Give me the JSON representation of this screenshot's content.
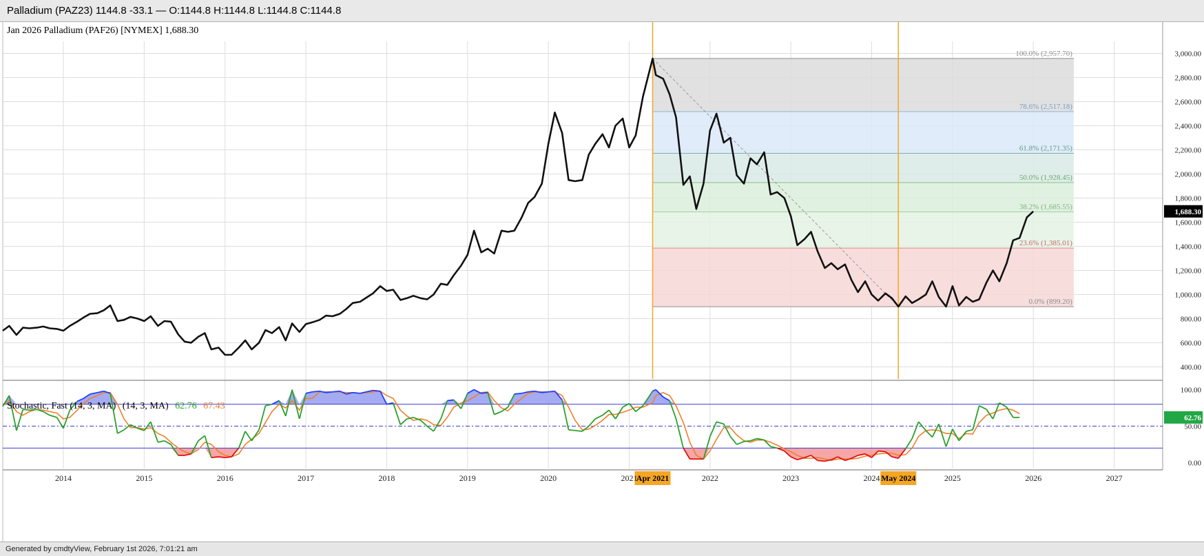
{
  "window_title": "Palladium (PAZ23) 1144.8 -33.1 — O:1144.8 H:1144.8 L:1144.8 C:1144.8",
  "footer_text": "Generated by cmdtyView, February 1st 2026, 7:01:21 am",
  "colors": {
    "price_line": "#111111",
    "marker": "#f5a623",
    "fast_k": "#2ca02c",
    "slow_d": "#f07f2a",
    "over_fill": "#9aa2f0",
    "under_fill": "#f29090",
    "over_line": "#1f3fff",
    "under_line": "#e01010",
    "last_price_bg": "#000000",
    "last_stoch_bg": "#22a745"
  },
  "chart_data": [
    {
      "type": "line",
      "title": "Jan 2026 Palladium (PAF26) [NYMEX] 1,688.30",
      "last_value_label": "1,688.30",
      "ylim": [
        300,
        3100
      ],
      "xlim": [
        2013.25,
        2027.6
      ],
      "y_ticks": [
        "400.00",
        "600.00",
        "800.00",
        "1,000.00",
        "1,200.00",
        "1,400.00",
        "1,600.00",
        "1,800.00",
        "2,000.00",
        "2,200.00",
        "2,400.00",
        "2,600.00",
        "2,800.00",
        "3,000.00"
      ],
      "x_ticks": [
        "2014",
        "2015",
        "2016",
        "2017",
        "2018",
        "2019",
        "2020",
        "2021",
        "2022",
        "2023",
        "2024",
        "2025",
        "2026",
        "2027"
      ],
      "fibonacci": {
        "levels": [
          {
            "label": "100.0% (2,957.70)",
            "value": 2957.7,
            "fill": "#dcdcdc",
            "line": "#8c8c8c",
            "text": "#8c8c8c"
          },
          {
            "label": "78.6% (2,517.18)",
            "value": 2517.18,
            "fill": "#dbe9f8",
            "line": "#8fb2d8",
            "text": "#7a9cc8"
          },
          {
            "label": "61.8% (2,171.35)",
            "value": 2171.35,
            "fill": "#d9eae6",
            "line": "#7fb0a6",
            "text": "#5e9a8e"
          },
          {
            "label": "50.0% (1,928.45)",
            "value": 1928.45,
            "fill": "#dcefdc",
            "line": "#86c086",
            "text": "#6aa86a"
          },
          {
            "label": "38.2% (1,685.55)",
            "value": 1685.55,
            "fill": "#e4f2e4",
            "line": "#a0d0a0",
            "text": "#7fb07f"
          },
          {
            "label": "23.6% (1,385.01)",
            "value": 1385.01,
            "fill": "#f7d7d7",
            "line": "#e08a8a",
            "text": "#c46a6a"
          },
          {
            "label": "0.0% (899.20)",
            "value": 899.2,
            "fill": "none",
            "line": "#8c8c8c",
            "text": "#8c8c8c"
          }
        ],
        "start_x": 2021.29,
        "end_x": 2024.33,
        "right_x": 2026.5
      },
      "markers": [
        {
          "label": "Apr 2021",
          "x": 2021.29
        },
        {
          "label": "May 2024",
          "x": 2024.33
        }
      ],
      "series": [
        {
          "x": [
            2013.25,
            2013.33,
            2013.42,
            2013.5,
            2013.58,
            2013.67,
            2013.75,
            2013.83,
            2013.92,
            2014.0,
            2014.08,
            2014.17,
            2014.25,
            2014.33,
            2014.42,
            2014.5,
            2014.58,
            2014.67,
            2014.75,
            2014.83,
            2014.92,
            2015.0,
            2015.08,
            2015.17,
            2015.25,
            2015.33,
            2015.42,
            2015.5,
            2015.58,
            2015.67,
            2015.75,
            2015.83,
            2015.92,
            2016.0,
            2016.08,
            2016.17,
            2016.25,
            2016.33,
            2016.42,
            2016.5,
            2016.58,
            2016.67,
            2016.75,
            2016.83,
            2016.92,
            2017.0,
            2017.08,
            2017.17,
            2017.25,
            2017.33,
            2017.42,
            2017.5,
            2017.58,
            2017.67,
            2017.75,
            2017.83,
            2017.92,
            2018.0,
            2018.08,
            2018.17,
            2018.25,
            2018.33,
            2018.42,
            2018.5,
            2018.58,
            2018.67,
            2018.75,
            2018.83,
            2018.92,
            2019.0,
            2019.08,
            2019.17,
            2019.25,
            2019.33,
            2019.42,
            2019.5,
            2019.58,
            2019.67,
            2019.75,
            2019.83,
            2019.92,
            2020.0,
            2020.08,
            2020.17,
            2020.25,
            2020.33,
            2020.42,
            2020.5,
            2020.58,
            2020.67,
            2020.75,
            2020.83,
            2020.92,
            2021.0,
            2021.08,
            2021.17,
            2021.29,
            2021.33,
            2021.42,
            2021.5,
            2021.58,
            2021.67,
            2021.75,
            2021.83,
            2021.92,
            2022.0,
            2022.08,
            2022.17,
            2022.25,
            2022.33,
            2022.42,
            2022.5,
            2022.58,
            2022.67,
            2022.75,
            2022.83,
            2022.92,
            2023.0,
            2023.08,
            2023.17,
            2023.25,
            2023.33,
            2023.42,
            2023.5,
            2023.58,
            2023.67,
            2023.75,
            2023.83,
            2023.92,
            2024.0,
            2024.08,
            2024.17,
            2024.25,
            2024.33,
            2024.42,
            2024.5,
            2024.58,
            2024.67,
            2024.75,
            2024.83,
            2024.92,
            2025.0,
            2025.08,
            2025.17,
            2025.25,
            2025.33,
            2025.42,
            2025.5,
            2025.58,
            2025.67,
            2025.75,
            2025.83,
            2025.92,
            2026.0
          ],
          "values": [
            700,
            740,
            665,
            725,
            720,
            725,
            735,
            720,
            715,
            700,
            740,
            775,
            810,
            840,
            845,
            870,
            910,
            780,
            790,
            815,
            800,
            780,
            820,
            740,
            780,
            775,
            670,
            610,
            600,
            650,
            680,
            545,
            560,
            500,
            500,
            560,
            620,
            545,
            600,
            705,
            680,
            730,
            620,
            760,
            690,
            755,
            770,
            790,
            825,
            820,
            840,
            880,
            930,
            940,
            975,
            1010,
            1070,
            1030,
            1040,
            955,
            970,
            990,
            970,
            960,
            1000,
            1090,
            1080,
            1160,
            1240,
            1330,
            1530,
            1350,
            1380,
            1340,
            1530,
            1520,
            1530,
            1640,
            1760,
            1810,
            1920,
            2250,
            2510,
            2340,
            1950,
            1940,
            1950,
            2160,
            2250,
            2330,
            2220,
            2400,
            2460,
            2220,
            2320,
            2640,
            2957,
            2820,
            2790,
            2660,
            2470,
            1910,
            1980,
            1710,
            1920,
            2360,
            2500,
            2260,
            2300,
            1990,
            1920,
            2130,
            2080,
            2180,
            1830,
            1850,
            1800,
            1650,
            1410,
            1460,
            1520,
            1360,
            1220,
            1260,
            1210,
            1250,
            1120,
            1020,
            1110,
            1000,
            950,
            1010,
            970,
            900,
            985,
            930,
            960,
            1000,
            1110,
            980,
            900,
            1070,
            910,
            980,
            940,
            960,
            1100,
            1200,
            1110,
            1260,
            1450,
            1470,
            1640,
            1690
          ]
        }
      ]
    },
    {
      "type": "line",
      "title": "Stochastic, Fast (14, 3, MA)",
      "params": "(14, 3, MA)",
      "k_value_label": "62.76",
      "d_value_label": "67.43",
      "ylim": [
        -8,
        110
      ],
      "y_ticks": [
        "0.00",
        "50.00",
        "100.00"
      ],
      "levels": [
        80,
        50,
        20
      ],
      "series": [
        {
          "name": "62.76",
          "values": [
            77,
            92,
            44,
            73,
            72,
            73,
            70,
            65,
            62,
            47,
            72,
            84,
            88,
            94,
            96,
            98,
            95,
            40,
            45,
            52,
            47,
            44,
            56,
            28,
            30,
            25,
            10,
            10,
            12,
            30,
            37,
            7,
            8,
            7,
            8,
            20,
            43,
            30,
            45,
            78,
            80,
            85,
            64,
            100,
            60,
            95,
            97,
            98,
            96,
            97,
            98,
            94,
            96,
            95,
            97,
            99,
            98,
            80,
            82,
            52,
            60,
            62,
            58,
            50,
            43,
            60,
            85,
            86,
            74,
            95,
            100,
            95,
            96,
            66,
            70,
            76,
            94,
            95,
            97,
            98,
            96,
            97,
            98,
            86,
            45,
            44,
            43,
            50,
            60,
            65,
            72,
            60,
            76,
            81,
            70,
            78,
            98,
            100,
            90,
            85,
            60,
            20,
            5,
            5,
            5,
            36,
            56,
            53,
            36,
            25,
            29,
            30,
            33,
            31,
            22,
            20,
            16,
            8,
            4,
            7,
            10,
            3,
            2,
            4,
            8,
            3,
            6,
            10,
            12,
            7,
            16,
            15,
            8,
            6,
            19,
            33,
            56,
            44,
            35,
            53,
            22,
            46,
            30,
            43,
            45,
            78,
            73,
            60,
            82,
            76,
            62,
            62
          ]
        },
        {
          "name": "67.43",
          "values": [
            78,
            85,
            70,
            65,
            70,
            73,
            72,
            70,
            68,
            60,
            62,
            72,
            81,
            88,
            92,
            96,
            96,
            80,
            60,
            48,
            48,
            46,
            48,
            40,
            36,
            28,
            20,
            15,
            12,
            18,
            28,
            25,
            15,
            10,
            8,
            12,
            25,
            32,
            40,
            55,
            70,
            80,
            75,
            85,
            72,
            88,
            88,
            97,
            97,
            97,
            97,
            96,
            96,
            95,
            96,
            97,
            98,
            92,
            88,
            72,
            64,
            58,
            60,
            58,
            52,
            51,
            62,
            76,
            82,
            85,
            90,
            96,
            97,
            85,
            75,
            71,
            80,
            88,
            95,
            97,
            97,
            97,
            97,
            92,
            76,
            58,
            45,
            46,
            51,
            58,
            66,
            66,
            69,
            72,
            76,
            76,
            82,
            92,
            96,
            92,
            78,
            55,
            28,
            10,
            5,
            16,
            32,
            48,
            48,
            38,
            30,
            28,
            31,
            31,
            28,
            24,
            19,
            15,
            10,
            6,
            6,
            7,
            5,
            3,
            5,
            5,
            5,
            6,
            9,
            10,
            12,
            13,
            13,
            10,
            11,
            20,
            36,
            44,
            45,
            44,
            40,
            40,
            33,
            40,
            39,
            55,
            65,
            68,
            72,
            74,
            72,
            67
          ]
        }
      ]
    }
  ]
}
